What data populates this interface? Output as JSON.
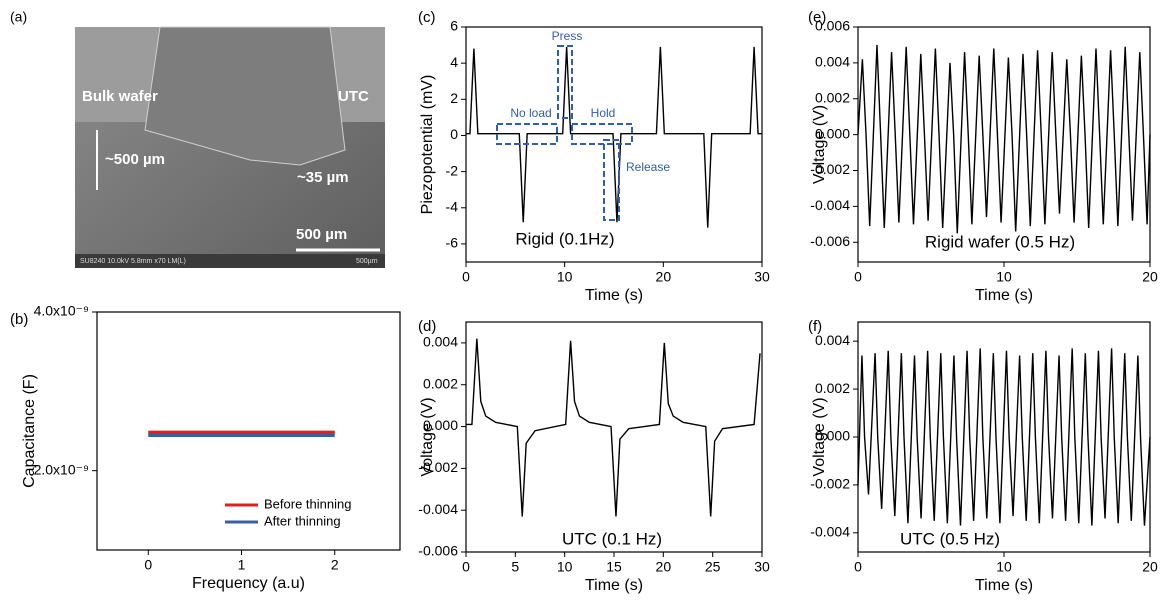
{
  "image": {
    "panel_label": "(a)",
    "labels": [
      "Bulk wafer",
      "UTC",
      "~500 µm",
      "~35 µm",
      "500 µm",
      "SU8240 10.0kV 5.8mm x70 LM(L)",
      "500µm"
    ]
  },
  "chart_data": [
    {
      "type": "line",
      "panel_label": "(b)",
      "x_label": "Frequency (a.u)",
      "y_label": "Capacitance (F)",
      "x": [
        0,
        2
      ],
      "series": [
        {
          "name": "Before thinning",
          "color": "#e02020",
          "values": [
            2.48e-09,
            2.48e-09
          ]
        },
        {
          "name": "After thinning",
          "color": "#3a5fa0",
          "values": [
            2.45e-09,
            2.45e-09
          ]
        }
      ],
      "xlim": [
        -0.55,
        2.7
      ],
      "xticks": [
        0,
        1,
        2
      ],
      "ylim": [
        1e-09,
        4e-09
      ],
      "yticks": [
        {
          "value": 2e-09,
          "label": "2.0x10⁻⁹"
        },
        {
          "value": 4e-09,
          "label": "4.0x10⁻⁹"
        }
      ]
    },
    {
      "type": "line",
      "panel_label": "(c)",
      "x_label": "Time (s)",
      "y_label": "Piezopotential (mV)",
      "label": "Rigid (0.1Hz)",
      "annotations": [
        "Press",
        "No load",
        "Hold",
        "Release"
      ],
      "x": [
        0,
        0.4,
        0.8,
        1.2,
        1.6,
        5.4,
        5.8,
        6.2,
        9.8,
        10.2,
        10.6,
        14.9,
        15.3,
        15.7,
        19.3,
        19.7,
        20.1,
        24.1,
        24.5,
        24.9,
        28.8,
        29.2,
        29.6,
        30
      ],
      "values": [
        0.1,
        0.1,
        4.8,
        0.1,
        0.1,
        0.1,
        -4.8,
        0.1,
        0.1,
        4.9,
        0.1,
        0.1,
        -4.8,
        0.1,
        0.1,
        4.9,
        0.1,
        0.1,
        -5.1,
        0.1,
        0.1,
        4.9,
        0.1,
        0.1
      ],
      "color": "#000000",
      "xlim": [
        0,
        30
      ],
      "xticks": [
        0,
        10,
        20,
        30
      ],
      "ylim": [
        -7,
        6
      ],
      "yticks": [
        -6,
        -4,
        -2,
        0,
        2,
        4,
        6
      ]
    },
    {
      "type": "line",
      "panel_label": "(d)",
      "x_label": "Time (s)",
      "y_label": "Voltage (V)",
      "label": "UTC (0.1 Hz)",
      "x": [
        0,
        0.6,
        1.1,
        1.5,
        2,
        3,
        5.2,
        5.7,
        6.1,
        7,
        10.1,
        10.6,
        11,
        11.5,
        12.5,
        14.7,
        15.2,
        15.6,
        16.5,
        19.6,
        20.1,
        20.5,
        21,
        22,
        24.3,
        24.8,
        25.2,
        26,
        29.2,
        29.8
      ],
      "values": [
        0.0001,
        0.0001,
        0.0042,
        0.0012,
        0.0005,
        0.0002,
        0,
        -0.0043,
        -0.0008,
        -0.0002,
        0.0001,
        0.0041,
        0.0012,
        0.0005,
        0.0002,
        0,
        -0.0043,
        -0.0006,
        -0.0001,
        0.0001,
        0.004,
        0.0011,
        0.0005,
        0.0002,
        0,
        -0.0043,
        -0.0007,
        -0.0001,
        0.0001,
        0.0035
      ],
      "color": "#000000",
      "xlim": [
        0,
        30
      ],
      "xticks": [
        0,
        5,
        10,
        15,
        20,
        25,
        30
      ],
      "ylim": [
        -0.006,
        0.005
      ],
      "yticks": [
        -0.006,
        -0.004,
        -0.002,
        {
          "value": 0,
          "label": "0.000"
        },
        0.002,
        0.004
      ]
    },
    {
      "type": "line",
      "panel_label": "(e)",
      "x_label": "Time (s)",
      "y_label": "Voltage (V)",
      "label": "Rigid wafer (0.5 Hz)",
      "x": [
        0,
        0.3,
        0.55,
        0.8,
        1.3,
        1.55,
        1.8,
        2.3,
        2.55,
        2.8,
        3.3,
        3.55,
        3.8,
        4.3,
        4.55,
        4.8,
        5.3,
        5.55,
        5.8,
        6.3,
        6.55,
        6.8,
        7.3,
        7.55,
        7.8,
        8.3,
        8.55,
        8.8,
        9.3,
        9.55,
        9.8,
        10.3,
        10.55,
        10.8,
        11.3,
        11.55,
        11.8,
        12.3,
        12.55,
        12.8,
        13.3,
        13.55,
        13.8,
        14.3,
        14.55,
        14.8,
        15.3,
        15.55,
        15.8,
        16.3,
        16.55,
        16.8,
        17.3,
        17.55,
        17.8,
        18.3,
        18.55,
        18.8,
        19.3,
        19.55,
        19.8,
        20
      ],
      "values": [
        0,
        0.0042,
        0,
        -0.0051,
        0.005,
        0,
        -0.0052,
        0.0046,
        0,
        -0.0049,
        0.0049,
        0,
        -0.005,
        0.0045,
        0,
        -0.0048,
        0.0048,
        0,
        -0.0052,
        0.004,
        0,
        -0.0055,
        0.0046,
        0,
        -0.005,
        0.0044,
        0,
        -0.0046,
        0.0048,
        0,
        -0.0049,
        0.0043,
        0,
        -0.0054,
        0.0045,
        0,
        -0.0051,
        0.0047,
        0,
        -0.005,
        0.0046,
        0,
        -0.0044,
        0.0042,
        0,
        -0.0049,
        0.0044,
        0,
        -0.0052,
        0.0048,
        0,
        -0.005,
        0.0047,
        0,
        -0.0051,
        0.0049,
        0,
        -0.0048,
        0.0046,
        0,
        -0.005,
        0
      ],
      "color": "#000000",
      "xlim": [
        0,
        20
      ],
      "xticks": [
        0,
        10,
        20
      ],
      "ylim": [
        -0.0071,
        0.006
      ],
      "yticks": [
        -0.006,
        -0.004,
        -0.002,
        {
          "value": 0,
          "label": "0.000"
        },
        0.002,
        0.004,
        0.006
      ]
    },
    {
      "type": "line",
      "panel_label": "(f)",
      "x_label": "Time (s)",
      "y_label": "Voltage (V)",
      "label": "UTC (0.5 Hz)",
      "x": [
        0,
        0.27,
        0.45,
        0.72,
        1.17,
        1.35,
        1.62,
        2.07,
        2.25,
        2.52,
        2.97,
        3.15,
        3.42,
        3.87,
        4.05,
        4.32,
        4.77,
        4.95,
        5.22,
        5.67,
        5.85,
        6.12,
        6.57,
        6.75,
        7.02,
        7.47,
        7.65,
        7.92,
        8.37,
        8.55,
        8.82,
        9.27,
        9.45,
        9.72,
        10.17,
        10.35,
        10.62,
        11.07,
        11.25,
        11.52,
        11.97,
        12.15,
        12.42,
        12.87,
        13.05,
        13.32,
        13.77,
        13.95,
        14.22,
        14.67,
        14.85,
        15.12,
        15.57,
        15.75,
        16.02,
        16.47,
        16.65,
        16.92,
        17.37,
        17.55,
        17.82,
        18.27,
        18.45,
        18.72,
        19.17,
        19.35,
        19.62,
        20
      ],
      "values": [
        -0.002,
        0.0034,
        0,
        -0.0024,
        0.0035,
        0,
        -0.003,
        0.0036,
        0,
        -0.0033,
        0.0035,
        0,
        -0.0036,
        0.0034,
        0,
        -0.0034,
        0.0036,
        0,
        -0.0035,
        0.0035,
        0,
        -0.0036,
        0.0034,
        0,
        -0.0037,
        0.0036,
        0,
        -0.0035,
        0.0037,
        0,
        -0.0034,
        0.0035,
        0,
        -0.0036,
        0.0036,
        0,
        -0.0033,
        0.0034,
        0,
        -0.0035,
        0.0035,
        0,
        -0.0036,
        0.0036,
        0,
        -0.0034,
        0.0034,
        0,
        -0.0035,
        0.0037,
        0,
        -0.0036,
        0.0035,
        0,
        -0.0037,
        0.0036,
        0,
        -0.0034,
        0.0037,
        0,
        -0.0036,
        0.0035,
        0,
        -0.0035,
        0.0034,
        0,
        -0.0037,
        0
      ],
      "color": "#000000",
      "xlim": [
        0,
        20
      ],
      "xticks": [
        0,
        10,
        20
      ],
      "ylim": [
        -0.0048,
        0.0048
      ],
      "yticks": [
        -0.004,
        -0.002,
        {
          "value": 0,
          "label": "0.000"
        },
        0.002,
        0.004
      ]
    }
  ]
}
